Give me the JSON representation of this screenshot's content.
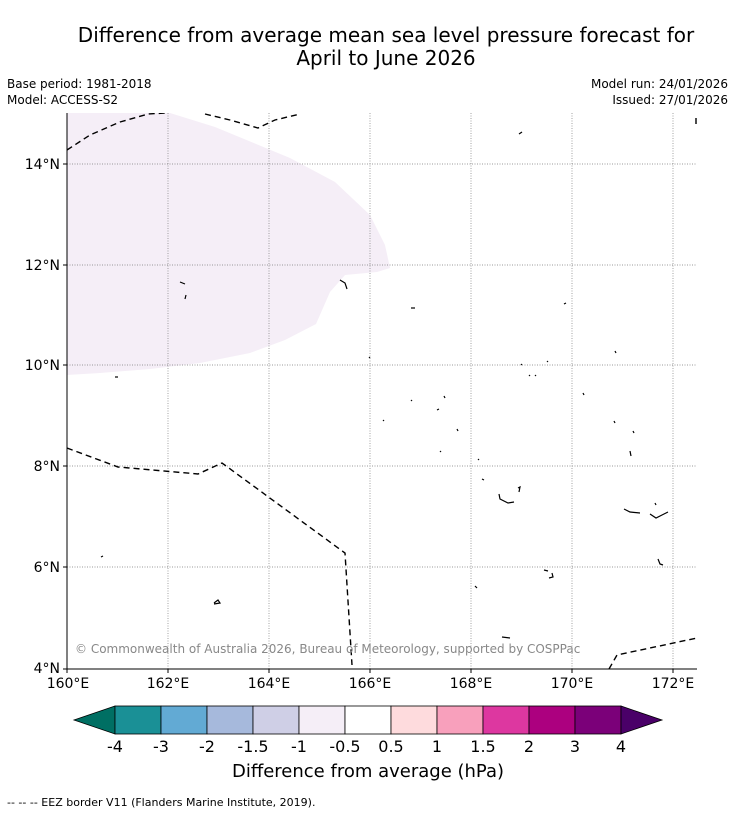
{
  "header": {
    "title_line1": "Difference from average mean sea level pressure forecast for",
    "title_line2": "April to June 2026",
    "base_period": "Base period: 1981-2018",
    "model": "Model: ACCESS-S2",
    "model_run": "Model run: 24/01/2026",
    "issued": "Issued: 27/01/2026"
  },
  "map": {
    "lat_labels": [
      "14°N",
      "12°N",
      "10°N",
      "8°N",
      "6°N",
      "4°N"
    ],
    "lon_labels": [
      "160°E",
      "162°E",
      "164°E",
      "166°E",
      "168°E",
      "170°E",
      "172°E"
    ],
    "copyright": "© Commonwealth of Australia 2026, Bureau of Meteorology, supported by COSPPac",
    "anomaly_region_category": "-1 to -0.5"
  },
  "colorbar": {
    "labels": [
      "-4",
      "-3",
      "-2",
      "-1.5",
      "-1",
      "-0.5",
      "0.5",
      "1",
      "1.5",
      "2",
      "3",
      "4"
    ],
    "colors": [
      "#006f63",
      "#1a9096",
      "#62aad4",
      "#a6b9dc",
      "#cfcfe6",
      "#f5eef7",
      "#ffffff",
      "#fedbdd",
      "#f8a0bc",
      "#dd37a0",
      "#ac007f",
      "#7b0079",
      "#4a0068"
    ],
    "title": "Difference from average (hPa)"
  },
  "footer": {
    "legend": "--  --  -- EEZ border V11 (Flanders Marine Institute, 2019)."
  }
}
